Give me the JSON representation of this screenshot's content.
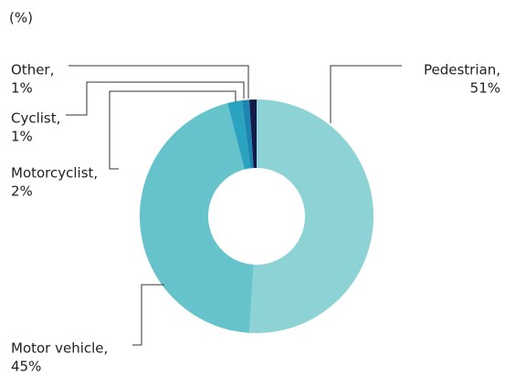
{
  "chart_data": {
    "type": "donut",
    "title": "(%)",
    "categories": [
      "Pedestrian,",
      "Motor vehicle,",
      "Motorcyclist,",
      "Cyclist,",
      "Other,"
    ],
    "values": [
      51,
      45,
      2,
      1,
      1
    ],
    "value_labels": [
      "51%",
      "45%",
      "2%",
      "1%",
      "1%"
    ],
    "colors": [
      "#8dd3d6",
      "#66c3cc",
      "#2aa3c0",
      "#1d86b0",
      "#141b4a"
    ]
  }
}
